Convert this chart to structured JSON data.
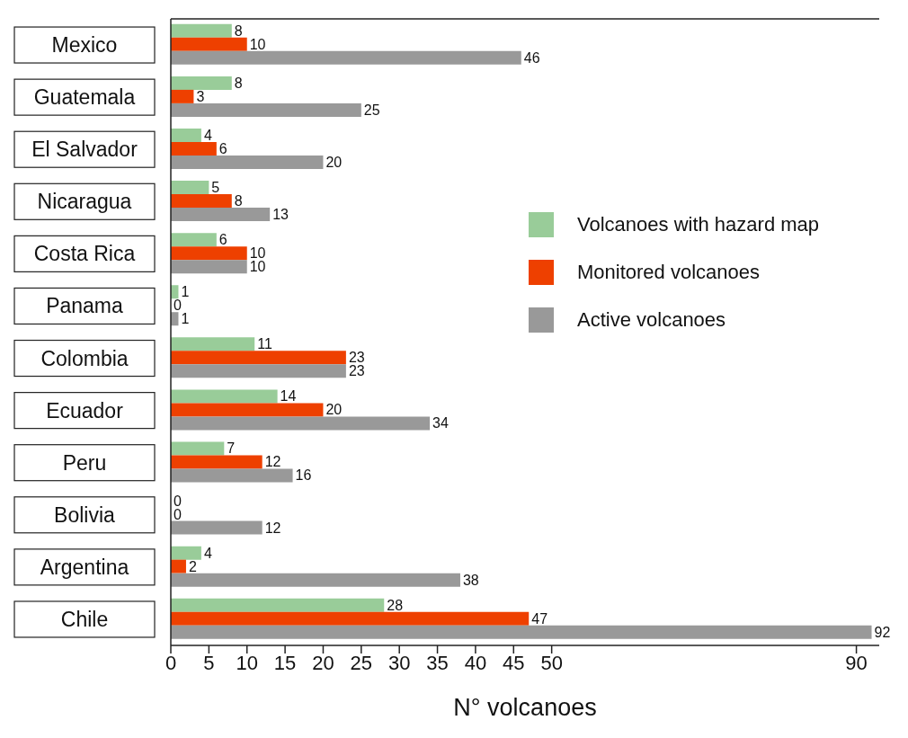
{
  "chart_data": {
    "type": "bar",
    "orientation": "horizontal",
    "xlabel": "N° volcanoes",
    "categories": [
      "Mexico",
      "Guatemala",
      "El Salvador",
      "Nicaragua",
      "Costa Rica",
      "Panama",
      "Colombia",
      "Ecuador",
      "Peru",
      "Bolivia",
      "Argentina",
      "Chile"
    ],
    "series": [
      {
        "name": "Volcanoes with hazard map",
        "color": "#99cc99",
        "values": [
          8,
          8,
          4,
          5,
          6,
          1,
          11,
          14,
          7,
          0,
          4,
          28
        ]
      },
      {
        "name": "Monitored volcanoes",
        "color": "#ee4000",
        "values": [
          10,
          3,
          6,
          8,
          10,
          0,
          23,
          20,
          12,
          0,
          2,
          47
        ]
      },
      {
        "name": "Active volcanoes",
        "color": "#999999",
        "values": [
          46,
          25,
          20,
          13,
          10,
          1,
          23,
          34,
          16,
          12,
          38,
          92
        ]
      }
    ],
    "xlim": [
      0,
      93
    ],
    "xticks": [
      0,
      5,
      10,
      15,
      20,
      25,
      30,
      35,
      40,
      45,
      50,
      90
    ],
    "data_labels": true,
    "grid": false,
    "legend": "right"
  }
}
